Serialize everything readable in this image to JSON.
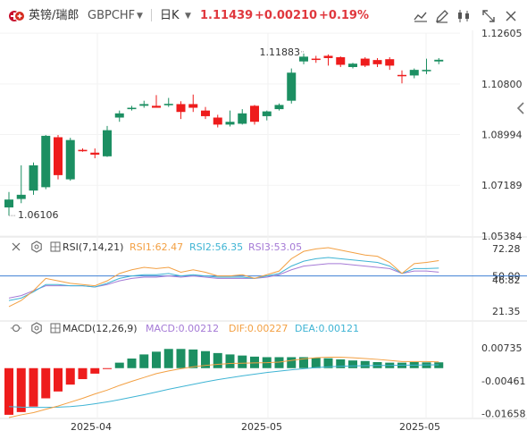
{
  "header": {
    "symbol_name": "英镑/瑞郎",
    "symbol_code": "GBPCHF",
    "timeframe": "日K",
    "price": "1.11439",
    "change": "+0.00210",
    "change_pct": "+0.19%"
  },
  "colors": {
    "up": "#1c8f62",
    "down": "#ee1c1c",
    "price_text": "#e0383e",
    "axis_text": "#333333"
  },
  "icons": {
    "logo": "gbpchf-flag-icon",
    "chart_type": "candlestick-icon"
  },
  "chart_data": {
    "type": "candlestick",
    "price_axis": {
      "ticks": [
        "1.12605",
        "1.10800",
        "1.08994",
        "1.07189",
        "1.05384"
      ],
      "ylim": [
        1.0538,
        1.1261
      ]
    },
    "date_axis": {
      "ticks": [
        "2025-04",
        "2025-05",
        "2025-05"
      ]
    },
    "annotations": {
      "high": "1.11883",
      "low": "1.06106"
    },
    "candles": [
      {
        "o": 1.064,
        "h": 1.0695,
        "l": 1.0611,
        "c": 1.0668
      },
      {
        "o": 1.067,
        "h": 1.079,
        "l": 1.0655,
        "c": 1.0685
      },
      {
        "o": 1.07,
        "h": 1.08,
        "l": 1.0685,
        "c": 1.079
      },
      {
        "o": 1.0712,
        "h": 1.0898,
        "l": 1.0705,
        "c": 1.0895
      },
      {
        "o": 1.089,
        "h": 1.0898,
        "l": 1.074,
        "c": 1.0755
      },
      {
        "o": 1.074,
        "h": 1.0888,
        "l": 1.0735,
        "c": 1.088
      },
      {
        "o": 1.0845,
        "h": 1.085,
        "l": 1.0838,
        "c": 1.084
      },
      {
        "o": 1.0835,
        "h": 1.085,
        "l": 1.0815,
        "c": 1.0828
      },
      {
        "o": 1.0822,
        "h": 1.093,
        "l": 1.082,
        "c": 1.0915
      },
      {
        "o": 1.096,
        "h": 1.0985,
        "l": 1.0945,
        "c": 1.0975
      },
      {
        "o": 1.099,
        "h": 1.1002,
        "l": 1.0985,
        "c": 1.0995
      },
      {
        "o": 1.1002,
        "h": 1.102,
        "l": 1.0995,
        "c": 1.1008
      },
      {
        "o": 1.1002,
        "h": 1.104,
        "l": 1.0995,
        "c": 1.0995
      },
      {
        "o": 1.1004,
        "h": 1.103,
        "l": 1.0998,
        "c": 1.1009
      },
      {
        "o": 1.1008,
        "h": 1.1018,
        "l": 1.0955,
        "c": 1.098
      },
      {
        "o": 1.1008,
        "h": 1.1042,
        "l": 1.098,
        "c": 1.0995
      },
      {
        "o": 1.0985,
        "h": 1.0998,
        "l": 1.0955,
        "c": 1.0965
      },
      {
        "o": 1.096,
        "h": 1.097,
        "l": 1.0925,
        "c": 1.0935
      },
      {
        "o": 1.0935,
        "h": 1.0985,
        "l": 1.0928,
        "c": 1.0945
      },
      {
        "o": 1.0938,
        "h": 1.099,
        "l": 1.0935,
        "c": 1.0975
      },
      {
        "o": 1.1002,
        "h": 1.1005,
        "l": 1.0935,
        "c": 1.0945
      },
      {
        "o": 1.0965,
        "h": 1.0985,
        "l": 1.095,
        "c": 1.0982
      },
      {
        "o": 1.099,
        "h": 1.101,
        "l": 1.0985,
        "c": 1.1005
      },
      {
        "o": 1.102,
        "h": 1.1135,
        "l": 1.101,
        "c": 1.112
      },
      {
        "o": 1.116,
        "h": 1.1188,
        "l": 1.115,
        "c": 1.1177
      },
      {
        "o": 1.117,
        "h": 1.118,
        "l": 1.1155,
        "c": 1.1168
      },
      {
        "o": 1.118,
        "h": 1.1185,
        "l": 1.1145,
        "c": 1.1172
      },
      {
        "o": 1.1175,
        "h": 1.1178,
        "l": 1.114,
        "c": 1.1148
      },
      {
        "o": 1.114,
        "h": 1.1155,
        "l": 1.1135,
        "c": 1.1152
      },
      {
        "o": 1.117,
        "h": 1.1175,
        "l": 1.114,
        "c": 1.1145
      },
      {
        "o": 1.1165,
        "h": 1.1172,
        "l": 1.114,
        "c": 1.115
      },
      {
        "o": 1.1168,
        "h": 1.1175,
        "l": 1.113,
        "c": 1.1145
      },
      {
        "o": 1.1112,
        "h": 1.1128,
        "l": 1.1082,
        "c": 1.1108
      },
      {
        "o": 1.111,
        "h": 1.1135,
        "l": 1.11,
        "c": 1.113
      },
      {
        "o": 1.1125,
        "h": 1.117,
        "l": 1.1115,
        "c": 1.113
      },
      {
        "o": 1.116,
        "h": 1.1172,
        "l": 1.115,
        "c": 1.1166
      }
    ],
    "rsi": {
      "label": "RSI(7,14,21)",
      "rsi1_label": "RSI1:62.47",
      "rsi2_label": "RSI2:56.35",
      "rsi3_label": "RSI3:53.05",
      "ticks": [
        "72.28",
        "50.00",
        "46.82",
        "21.35"
      ],
      "ylim": [
        21.35,
        72.28
      ],
      "rsi1": [
        25,
        30,
        38,
        48,
        46,
        44,
        43,
        42,
        46,
        52,
        55,
        57,
        56,
        57,
        53,
        55,
        53,
        50,
        50,
        51,
        48,
        51,
        54,
        64,
        70,
        72,
        73,
        71,
        69,
        67,
        66,
        61,
        52,
        60,
        61,
        62.47
      ],
      "rsi2": [
        30,
        32,
        37,
        43,
        43,
        42,
        42,
        41,
        44,
        48,
        50,
        51,
        51,
        52,
        50,
        51,
        50,
        49,
        49,
        49,
        48,
        50,
        52,
        58,
        62,
        64,
        65,
        64,
        63,
        62,
        61,
        58,
        52,
        56,
        56,
        56.35
      ],
      "rsi3": [
        32,
        34,
        38,
        42,
        42,
        42,
        42,
        41,
        43,
        46,
        48,
        49,
        49,
        50,
        49,
        50,
        49,
        48,
        48,
        48,
        48,
        49,
        51,
        55,
        58,
        59,
        60,
        60,
        59,
        58,
        57,
        56,
        52,
        54,
        54,
        53.05
      ]
    },
    "macd": {
      "label": "MACD(12,26,9)",
      "macd_label": "MACD:0.00212",
      "dif_label": "DIF:0.00227",
      "dea_label": "DEA:0.00121",
      "ticks": [
        "0.00735",
        "-0.00461",
        "-0.01658"
      ],
      "ylim": [
        -0.018,
        0.011
      ],
      "hist": [
        -0.017,
        -0.016,
        -0.014,
        -0.011,
        -0.0085,
        -0.006,
        -0.004,
        -0.002,
        -0.0003,
        0.002,
        0.0035,
        0.005,
        0.006,
        0.007,
        0.007,
        0.0068,
        0.0062,
        0.0055,
        0.005,
        0.0046,
        0.0042,
        0.004,
        0.004,
        0.004,
        0.004,
        0.0038,
        0.0036,
        0.0032,
        0.0028,
        0.0026,
        0.0022,
        0.002,
        0.002,
        0.0022,
        0.0021,
        0.00212
      ],
      "dif": [
        -0.018,
        -0.017,
        -0.0162,
        -0.015,
        -0.0138,
        -0.0124,
        -0.011,
        -0.0094,
        -0.008,
        -0.0063,
        -0.0048,
        -0.0034,
        -0.002,
        -0.001,
        -0.0002,
        0.0005,
        0.001,
        0.0014,
        0.0017,
        0.0018,
        0.0019,
        0.002,
        0.0022,
        0.0028,
        0.0034,
        0.0038,
        0.004,
        0.004,
        0.0038,
        0.0035,
        0.0032,
        0.0028,
        0.0024,
        0.0024,
        0.0024,
        0.00227
      ],
      "dea": [
        -0.014,
        -0.0142,
        -0.0143,
        -0.0143,
        -0.0142,
        -0.014,
        -0.0136,
        -0.013,
        -0.0123,
        -0.0115,
        -0.0106,
        -0.0097,
        -0.0087,
        -0.0077,
        -0.0068,
        -0.0059,
        -0.005,
        -0.0042,
        -0.0035,
        -0.0028,
        -0.0022,
        -0.0016,
        -0.0011,
        -0.0006,
        -0.0002,
        0.0002,
        0.0005,
        0.0007,
        0.0008,
        0.0009,
        0.001,
        0.001,
        0.0011,
        0.0011,
        0.0012,
        0.00121
      ]
    }
  }
}
